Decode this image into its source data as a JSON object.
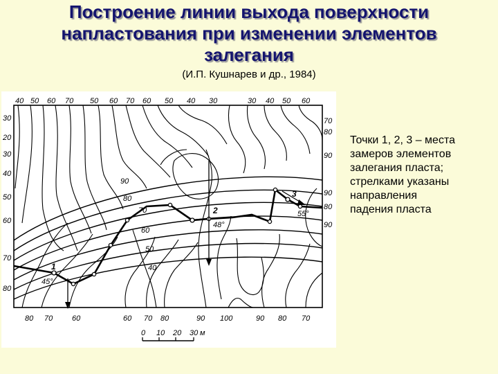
{
  "title_lines": [
    "Построение линии выхода поверхности",
    "напластования при изменении элементов",
    "залегания"
  ],
  "subtitle": "(И.П. Кушнарев и др., 1984)",
  "caption_lines": [
    "Точки 1, 2, 3 – места",
    "замеров элементов",
    "залегания пласта;",
    "стрелками указаны",
    "направления",
    "падения пласта"
  ],
  "map": {
    "top_labels": [
      "40",
      "50",
      "60",
      "70",
      "50",
      "60",
      "70",
      "60",
      "50",
      "40",
      "30",
      "30",
      "40",
      "50",
      "60"
    ],
    "bottom_labels": [
      "80",
      "70",
      "60",
      "60",
      "70",
      "80",
      "90",
      "100",
      "90",
      "80",
      "70"
    ],
    "left_labels": [
      "30",
      "20",
      "30",
      "40",
      "50",
      "60",
      "70",
      "80"
    ],
    "right_labels": [
      "70",
      "80",
      "90",
      "90",
      "80",
      "90"
    ],
    "stratum_labels": [
      "90",
      "80",
      "70",
      "60",
      "50",
      "40"
    ],
    "points": [
      {
        "id": "1",
        "angle": "45°"
      },
      {
        "id": "2",
        "angle": "48°"
      },
      {
        "id": "3",
        "angle": "55°"
      }
    ],
    "scale": {
      "ticks": [
        "0",
        "10",
        "20",
        "30"
      ],
      "unit": "м"
    }
  }
}
